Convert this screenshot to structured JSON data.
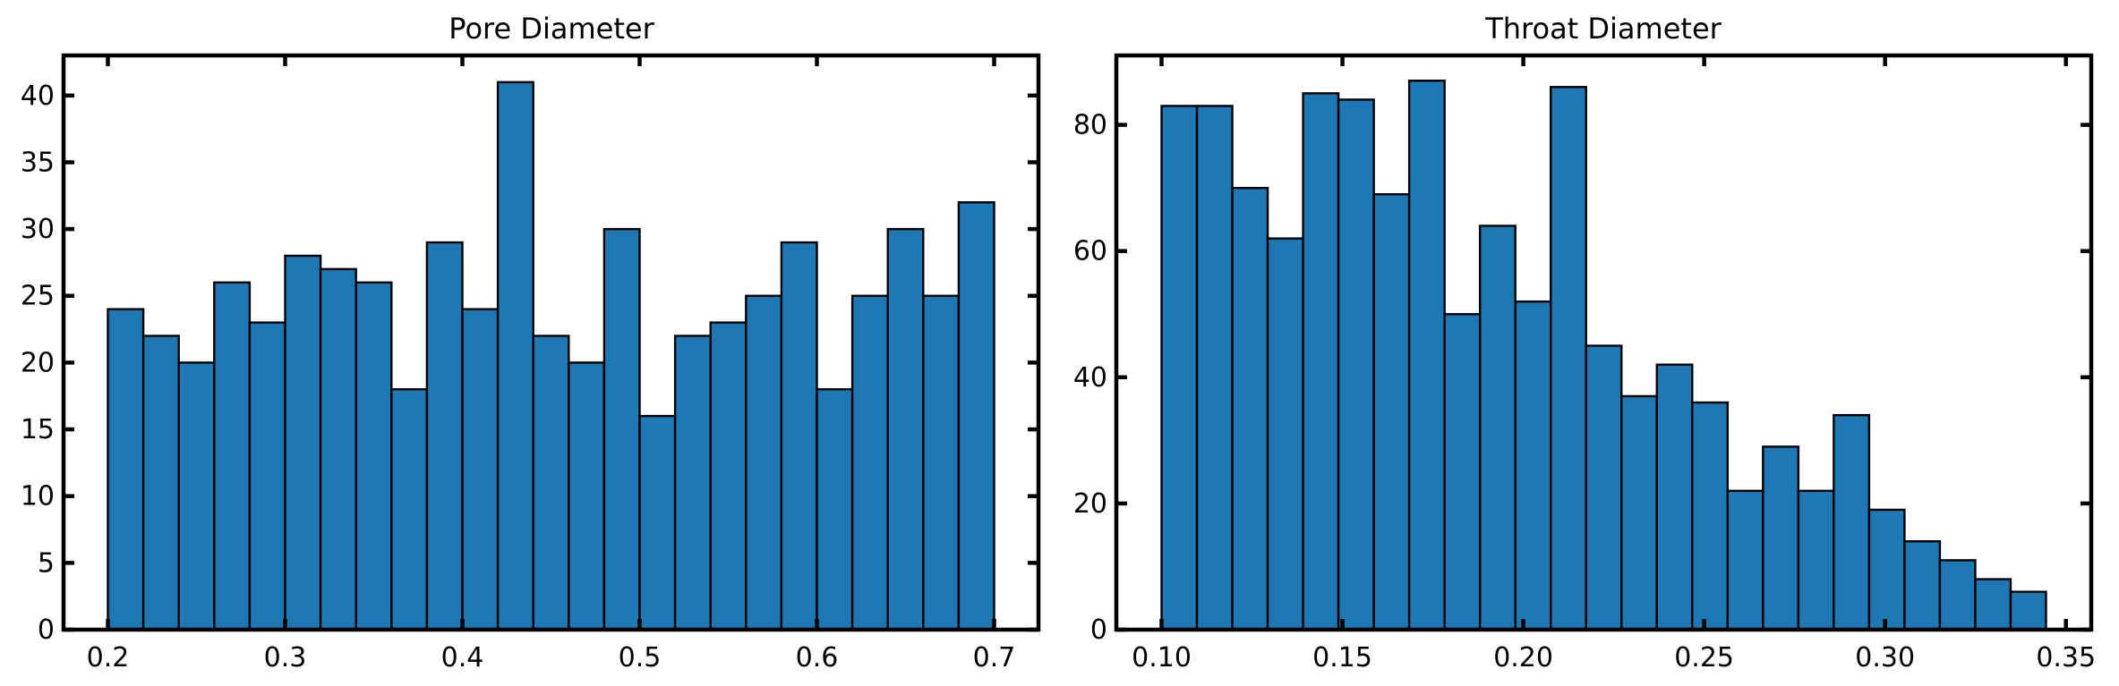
{
  "colors": {
    "bar_fill": "#1f77b4",
    "bar_edge": "#000000",
    "axes": "#000000",
    "background": "#ffffff"
  },
  "chart_data": [
    {
      "type": "bar",
      "title": "Pore Diameter",
      "xlabel": "",
      "ylabel": "",
      "bin_start": 0.2,
      "bin_end": 0.7,
      "counts": [
        24,
        22,
        20,
        26,
        23,
        28,
        27,
        26,
        18,
        29,
        24,
        41,
        22,
        20,
        30,
        16,
        22,
        23,
        25,
        29,
        18,
        25,
        30,
        25,
        32
      ],
      "xlim": [
        0.175,
        0.725
      ],
      "ylim": [
        0,
        43
      ],
      "xticks": [
        0.2,
        0.3,
        0.4,
        0.5,
        0.6,
        0.7
      ],
      "xtick_labels": [
        "0.2",
        "0.3",
        "0.4",
        "0.5",
        "0.6",
        "0.7"
      ],
      "yticks": [
        0,
        5,
        10,
        15,
        20,
        25,
        30,
        35,
        40
      ],
      "ytick_labels": [
        "0",
        "5",
        "10",
        "15",
        "20",
        "25",
        "30",
        "35",
        "40"
      ],
      "grid": false
    },
    {
      "type": "bar",
      "title": "Throat Diameter",
      "xlabel": "",
      "ylabel": "",
      "bin_start": 0.1,
      "bin_end": 0.3445,
      "counts": [
        83,
        83,
        70,
        62,
        85,
        84,
        69,
        87,
        50,
        64,
        52,
        86,
        45,
        37,
        42,
        36,
        22,
        29,
        22,
        34,
        19,
        14,
        11,
        8,
        6
      ],
      "xlim": [
        0.0875,
        0.357
      ],
      "ylim": [
        0,
        91
      ],
      "xticks": [
        0.1,
        0.15,
        0.2,
        0.25,
        0.3,
        0.35
      ],
      "xtick_labels": [
        "0.10",
        "0.15",
        "0.20",
        "0.25",
        "0.30",
        "0.35"
      ],
      "yticks": [
        0,
        20,
        40,
        60,
        80
      ],
      "ytick_labels": [
        "0",
        "20",
        "40",
        "60",
        "80"
      ],
      "grid": false
    }
  ]
}
